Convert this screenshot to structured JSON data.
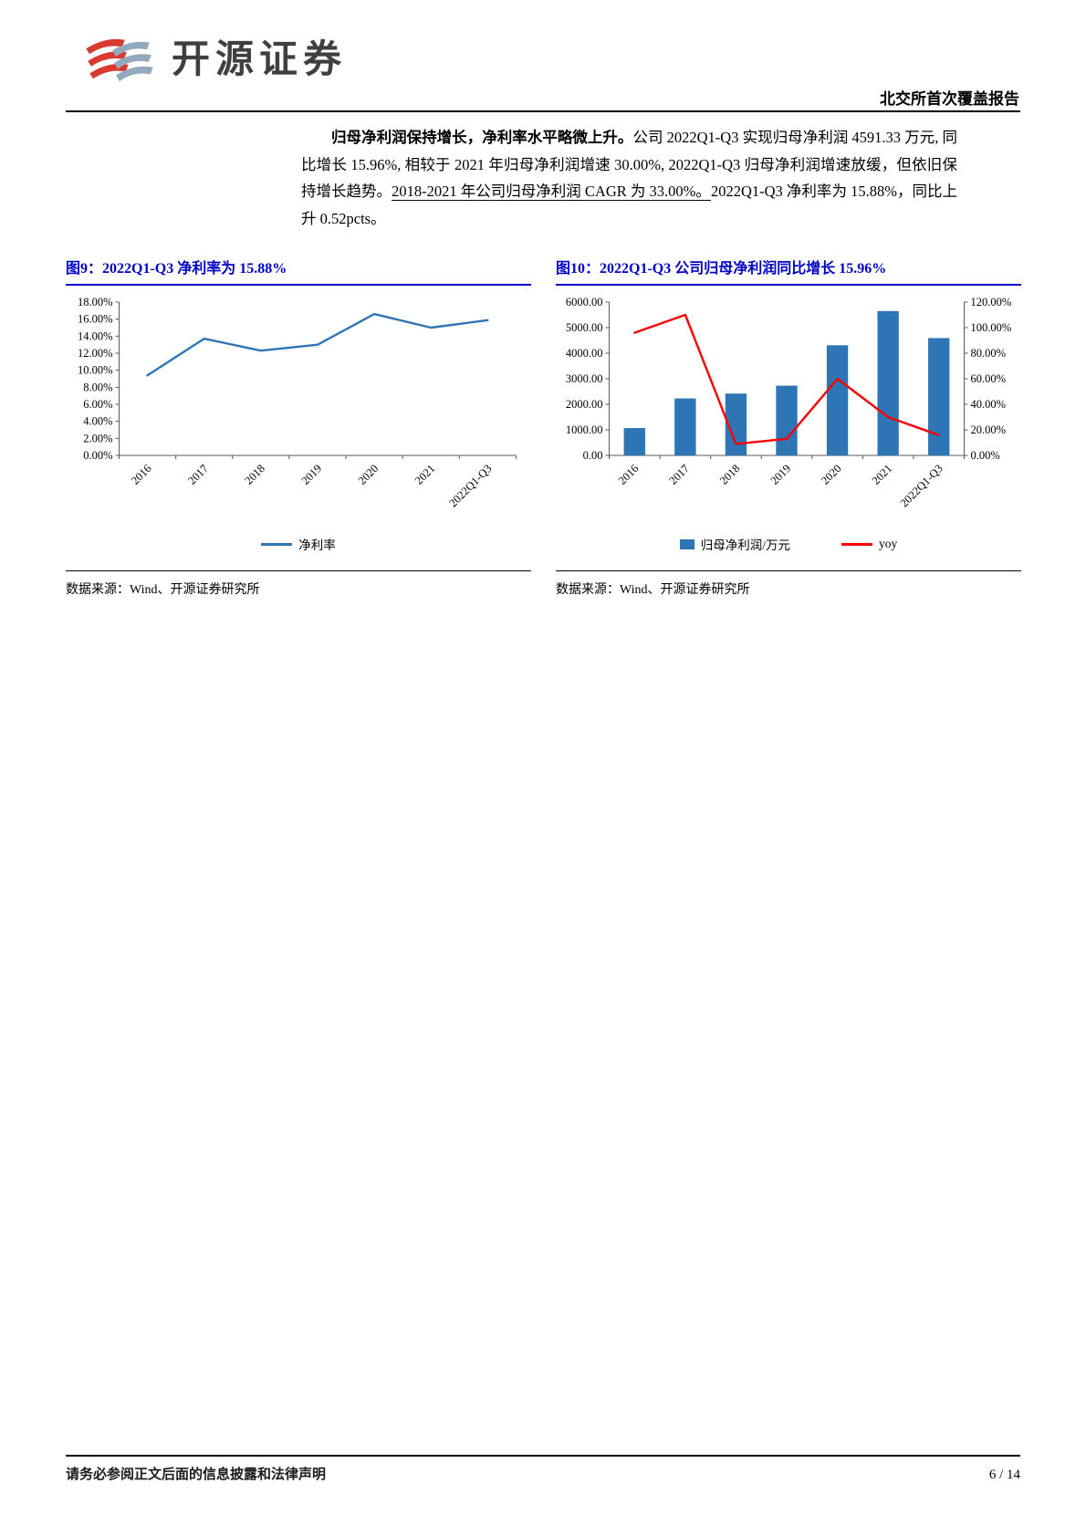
{
  "header": {
    "logo_text": "开源证券",
    "report_label": "北交所首次覆盖报告"
  },
  "paragraph": {
    "lead_bold": "归母净利润保持增长，净利率水平略微上升。",
    "segment_1": "公司 2022Q1-Q3 实现归母净利润 4591.33 万元, 同比增长 15.96%, 相较于 2021 年归母净利润增速 30.00%, 2022Q1-Q3 归母净利润增速放缓，但依旧保持增长趋势。",
    "underlined": "2018-2021 年公司归母净利润 CAGR 为 33.00%。",
    "segment_2": "2022Q1-Q3 净利率为 15.88%，同比上升 0.52pcts。"
  },
  "chart_data": [
    {
      "type": "line",
      "title": "图9：2022Q1-Q3 净利率为 15.88%",
      "categories": [
        "2016",
        "2017",
        "2018",
        "2019",
        "2020",
        "2021",
        "2022Q1-Q3"
      ],
      "series": [
        {
          "name": "净利率",
          "type": "line",
          "axis": "left",
          "color": "#2E75B6",
          "values": [
            9.4,
            13.7,
            12.3,
            13.0,
            16.6,
            15.0,
            15.88
          ]
        }
      ],
      "y_left": {
        "min": 0,
        "max": 18,
        "step": 2,
        "decimals": 2,
        "suffix": "%"
      },
      "grid": false,
      "legend_position": "bottom",
      "source": "数据来源：Wind、开源证券研究所"
    },
    {
      "type": "bar-line",
      "title": "图10：2022Q1-Q3 公司归母净利润同比增长 15.96%",
      "categories": [
        "2016",
        "2017",
        "2018",
        "2019",
        "2020",
        "2021",
        "2022Q1-Q3"
      ],
      "series": [
        {
          "name": "归母净利润/万元",
          "type": "bar",
          "axis": "left",
          "color": "#2E75B6",
          "values": [
            1070,
            2230,
            2420,
            2730,
            4310,
            5650,
            4591.33
          ]
        },
        {
          "name": "yoy",
          "type": "line",
          "axis": "right",
          "color": "#FF0000",
          "values": [
            96,
            110,
            9,
            13,
            60,
            30,
            15.96
          ]
        }
      ],
      "y_left": {
        "min": 0,
        "max": 6000,
        "step": 1000,
        "decimals": 2,
        "suffix": ""
      },
      "y_right": {
        "min": 0,
        "max": 120,
        "step": 20,
        "decimals": 2,
        "suffix": "%"
      },
      "grid": false,
      "legend_position": "bottom",
      "source": "数据来源：Wind、开源证券研究所"
    }
  ],
  "footer": {
    "disclaimer": "请务必参阅正文后面的信息披露和法律声明",
    "page_number": "6 / 14"
  },
  "colors": {
    "figure_title_blue": "#0000C8",
    "chart_blue": "#2E75B6",
    "line_red": "#FF0000",
    "logo_red": "#D93A30",
    "logo_gray_blue": "#93A9BD"
  }
}
